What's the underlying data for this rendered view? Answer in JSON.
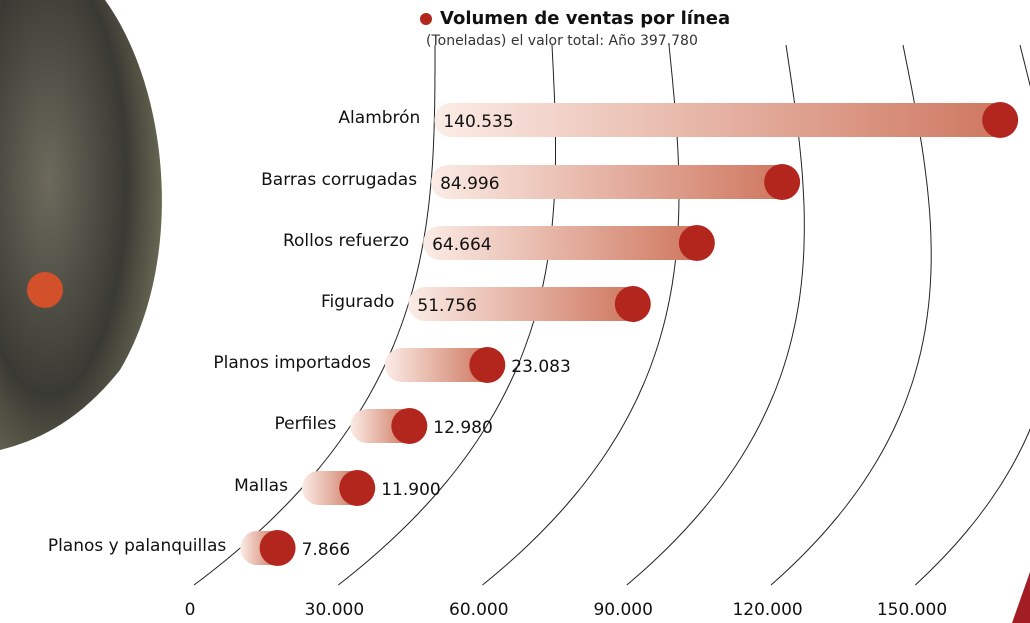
{
  "chart_data": {
    "type": "bar",
    "title": "Volumen de ventas por línea",
    "subtitle": "(Toneladas) el valor total: Año 397.780",
    "categories": [
      "Alambrón",
      "Barras corrugadas",
      "Rollos refuerzo",
      "Figurado",
      "Planos importados",
      "Perfiles",
      "Mallas",
      "Planos  y palanquillas"
    ],
    "values": [
      140535,
      84996,
      64664,
      51756,
      23083,
      12980,
      11900,
      7866
    ],
    "value_labels": [
      "140.535",
      "84.996",
      "64.664",
      "51.756",
      "23.083",
      "12.980",
      "11.900",
      "7.866"
    ],
    "color": "#b3261e",
    "xlim": [
      0,
      150000
    ],
    "xticks": [
      0,
      {
        "value": 30000,
        "label": "30.000"
      },
      {
        "value": 60000,
        "label": "60.000"
      },
      {
        "value": 90000,
        "label": "90.000"
      },
      {
        "value": 120000,
        "label": "120.000"
      },
      {
        "value": 150000,
        "label": "150.000"
      }
    ],
    "grid": true
  }
}
